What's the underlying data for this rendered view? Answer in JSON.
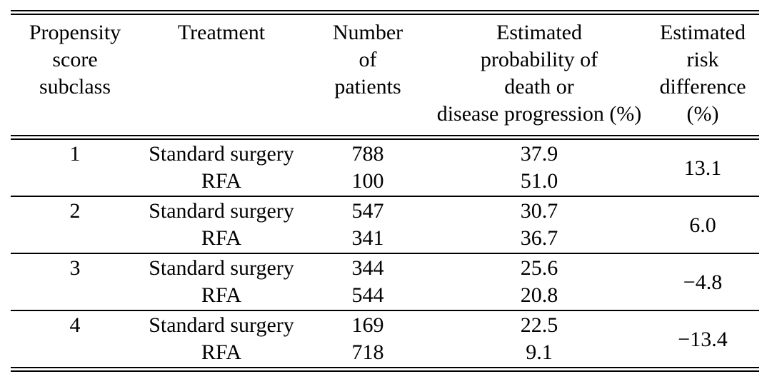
{
  "table": {
    "columns": [
      {
        "label": "Propensity\nscore\nsubclass"
      },
      {
        "label": "Treatment"
      },
      {
        "label": "Number\nof\npatients"
      },
      {
        "label": "Estimated\nprobability of\ndeath or\ndisease progression (%)"
      },
      {
        "label": "Estimated\nrisk\ndifference\n(%)"
      }
    ],
    "groups": [
      {
        "subclass": "1",
        "risk_difference": "13.1",
        "rows": [
          {
            "treatment": "Standard surgery",
            "n_patients": "788",
            "probability": "37.9"
          },
          {
            "treatment": "RFA",
            "n_patients": "100",
            "probability": "51.0"
          }
        ]
      },
      {
        "subclass": "2",
        "risk_difference": "6.0",
        "rows": [
          {
            "treatment": "Standard surgery",
            "n_patients": "547",
            "probability": "30.7"
          },
          {
            "treatment": "RFA",
            "n_patients": "341",
            "probability": "36.7"
          }
        ]
      },
      {
        "subclass": "3",
        "risk_difference": "−4.8",
        "rows": [
          {
            "treatment": "Standard surgery",
            "n_patients": "344",
            "probability": "25.6"
          },
          {
            "treatment": "RFA",
            "n_patients": "544",
            "probability": "20.8"
          }
        ]
      },
      {
        "subclass": "4",
        "risk_difference": "−13.4",
        "rows": [
          {
            "treatment": "Standard surgery",
            "n_patients": "169",
            "probability": "22.5"
          },
          {
            "treatment": "RFA",
            "n_patients": "718",
            "probability": "9.1"
          }
        ]
      }
    ]
  },
  "chart_data": {
    "type": "table",
    "columns": [
      "Propensity score subclass",
      "Treatment",
      "Number of patients",
      "Estimated probability of death or disease progression (%)",
      "Estimated risk difference (%)"
    ],
    "rows": [
      [
        "1",
        "Standard surgery",
        788,
        37.9,
        13.1
      ],
      [
        "1",
        "RFA",
        100,
        51.0,
        13.1
      ],
      [
        "2",
        "Standard surgery",
        547,
        30.7,
        6.0
      ],
      [
        "2",
        "RFA",
        341,
        36.7,
        6.0
      ],
      [
        "3",
        "Standard surgery",
        344,
        25.6,
        -4.8
      ],
      [
        "3",
        "RFA",
        544,
        20.8,
        -4.8
      ],
      [
        "4",
        "Standard surgery",
        169,
        22.5,
        -13.4
      ],
      [
        "4",
        "RFA",
        718,
        9.1,
        -13.4
      ]
    ]
  },
  "colors": {
    "text": "#000000",
    "background": "#ffffff",
    "rule": "#000000"
  }
}
